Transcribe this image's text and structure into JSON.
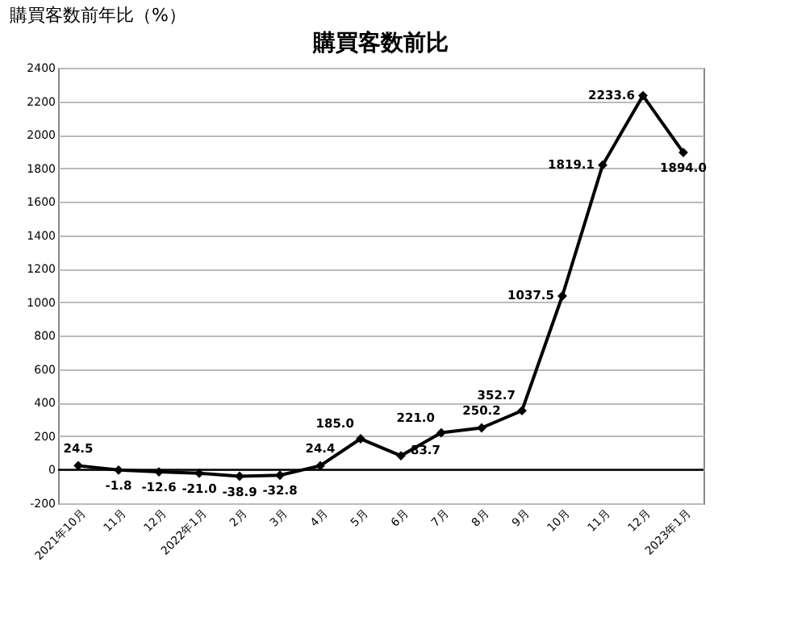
{
  "chart_data": {
    "type": "line",
    "title": "購買客数前比",
    "annotations": [
      "購買客数前年比（%）"
    ],
    "categories": [
      "2021年10月",
      "11月",
      "12月",
      "2022年1月",
      "2月",
      "3月",
      "4月",
      "5月",
      "6月",
      "7月",
      "8月",
      "9月",
      "10月",
      "11月",
      "12月",
      "2023年1月"
    ],
    "series": [
      {
        "color": "#000000",
        "values": [
          24.5,
          -1.8,
          -12.6,
          -21.0,
          -38.9,
          -32.8,
          24.4,
          185.0,
          83.7,
          221.0,
          250.2,
          352.7,
          1037.5,
          1819.1,
          2233.6,
          1894.0
        ],
        "value_labels": [
          "24.5",
          "-1.8",
          "-12.6",
          "-21.0",
          "-38.9",
          "-32.8",
          "24.4",
          "185.0",
          "83.7",
          "221.0",
          "250.2",
          "352.7",
          "1037.5",
          "1819.1",
          "2233.6",
          "1894.0"
        ]
      }
    ],
    "ylim": [
      -200,
      2400
    ],
    "yticks": [
      -200,
      0,
      200,
      400,
      600,
      800,
      1000,
      1200,
      1400,
      1600,
      1800,
      2000,
      2200,
      2400
    ],
    "grid": "y",
    "marker": "diamond",
    "line_style": "solid",
    "legend": false,
    "ref_lines": [
      {
        "axis": "y",
        "value": 0,
        "color": "#000000"
      }
    ]
  }
}
